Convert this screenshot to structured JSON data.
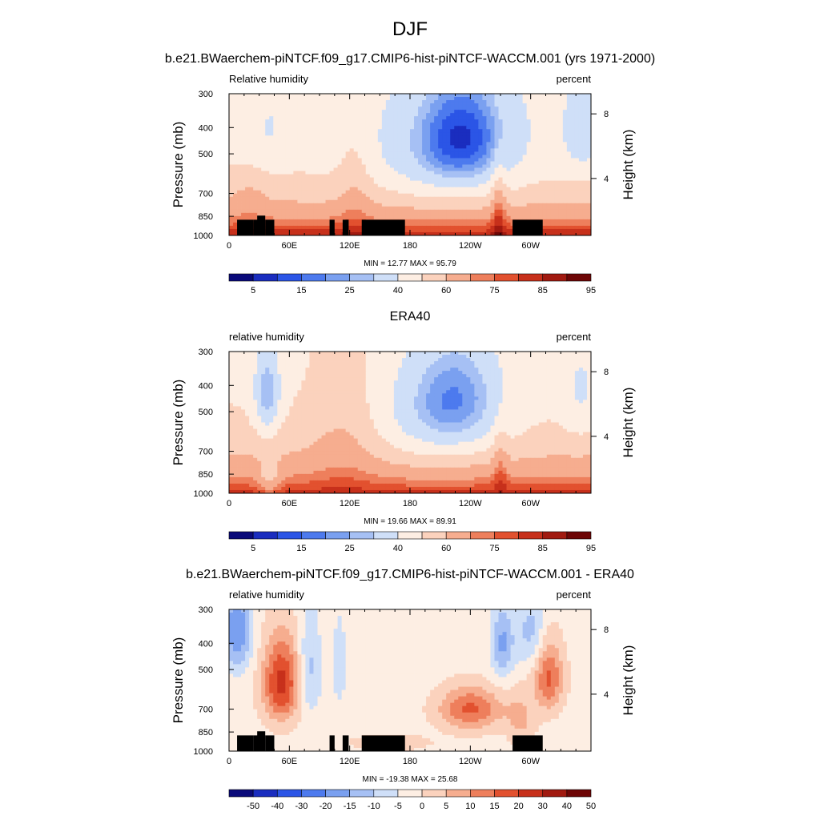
{
  "main_title": "DJF",
  "chart_data": [
    {
      "type": "heatmap",
      "title": "b.e21.BWaerchem-piNTCF.f09_g17.CMIP6-hist-piNTCF-WACCM.001 (yrs 1971-2000)",
      "left_label": "Relative humidity",
      "right_label": "percent",
      "ylabel": "Pressure (mb)",
      "ylabel_right": "Height (km)",
      "x_ticks": [
        "0",
        "60E",
        "120E",
        "180",
        "120W",
        "60W"
      ],
      "x_tick_lon": [
        0,
        60,
        120,
        180,
        240,
        300
      ],
      "y_ticks": [
        "300",
        "400",
        "500",
        "700",
        "850",
        "1000"
      ],
      "y_tick_p": [
        300,
        400,
        500,
        700,
        850,
        1000
      ],
      "height_ticks": [
        "8",
        "4"
      ],
      "height_tick_km": [
        8,
        4
      ],
      "minmax": "MIN =  12.77  MAX =  95.79",
      "min": 12.77,
      "max": 95.79,
      "colorbar_labels": [
        "5",
        "15",
        "25",
        "40",
        "60",
        "75",
        "85",
        "95"
      ],
      "field": "rh_model",
      "terrain": true
    },
    {
      "type": "heatmap",
      "title": "ERA40",
      "left_label": "relative humidity",
      "right_label": "percent",
      "ylabel": "Pressure (mb)",
      "ylabel_right": "Height (km)",
      "x_ticks": [
        "0",
        "60E",
        "120E",
        "180",
        "120W",
        "60W"
      ],
      "x_tick_lon": [
        0,
        60,
        120,
        180,
        240,
        300
      ],
      "y_ticks": [
        "300",
        "400",
        "500",
        "700",
        "850",
        "1000"
      ],
      "y_tick_p": [
        300,
        400,
        500,
        700,
        850,
        1000
      ],
      "height_ticks": [
        "8",
        "4"
      ],
      "height_tick_km": [
        8,
        4
      ],
      "minmax": "MIN =  19.66  MAX =  89.91",
      "min": 19.66,
      "max": 89.91,
      "colorbar_labels": [
        "5",
        "15",
        "25",
        "40",
        "60",
        "75",
        "85",
        "95"
      ],
      "field": "rh_obs",
      "terrain": false
    },
    {
      "type": "heatmap",
      "title": "b.e21.BWaerchem-piNTCF.f09_g17.CMIP6-hist-piNTCF-WACCM.001 - ERA40",
      "left_label": "relative humidity",
      "right_label": "percent",
      "ylabel": "Pressure (mb)",
      "ylabel_right": "Height (km)",
      "x_ticks": [
        "0",
        "60E",
        "120E",
        "180",
        "120W",
        "60W"
      ],
      "x_tick_lon": [
        0,
        60,
        120,
        180,
        240,
        300
      ],
      "y_ticks": [
        "300",
        "400",
        "500",
        "700",
        "850",
        "1000"
      ],
      "y_tick_p": [
        300,
        400,
        500,
        700,
        850,
        1000
      ],
      "height_ticks": [
        "8",
        "4"
      ],
      "height_tick_km": [
        8,
        4
      ],
      "minmax": "MIN = -19.38  MAX =  25.68",
      "min": -19.38,
      "max": 25.68,
      "colorbar_labels": [
        "-50",
        "-40",
        "-30",
        "-20",
        "-15",
        "-10",
        "-5",
        "0",
        "5",
        "10",
        "15",
        "20",
        "30",
        "40",
        "50"
      ],
      "field": "rh_diff",
      "terrain": true
    }
  ],
  "colors": {
    "palette": [
      "#0a0a7a",
      "#1a2dbf",
      "#2b55e6",
      "#4d7aee",
      "#7aa0f0",
      "#a6c0f4",
      "#cfdff8",
      "#fdeee3",
      "#fbd2bd",
      "#f6ad8f",
      "#ee7f5c",
      "#e2512f",
      "#c7301b",
      "#a11a10",
      "#6e0606"
    ],
    "terrain": "#000000"
  }
}
